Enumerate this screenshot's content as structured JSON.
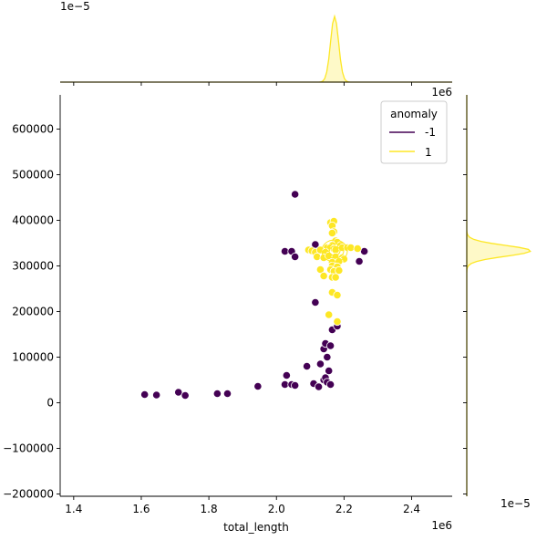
{
  "chart_data": {
    "type": "scatter",
    "title": "",
    "xlabel": "total_length",
    "ylabel": "",
    "x_offset_label": "1e6",
    "y_offset_label": "1e6",
    "top_marginal_offset_label": "1e−5",
    "right_marginal_offset_label": "1e−5",
    "xlim": [
      1.36,
      2.52
    ],
    "ylim": [
      -205000,
      675000
    ],
    "x_ticks": [
      1.4,
      1.6,
      1.8,
      2.0,
      2.2,
      2.4
    ],
    "y_ticks": [
      -200000,
      -100000,
      0,
      100000,
      200000,
      300000,
      400000,
      500000,
      600000
    ],
    "x_tick_labels": [
      "1.4",
      "1.6",
      "1.8",
      "2.0",
      "2.2",
      "2.4"
    ],
    "y_tick_labels": [
      "−200000",
      "−100000",
      "0",
      "100000",
      "200000",
      "300000",
      "400000",
      "500000",
      "600000"
    ],
    "grid": false,
    "legend": {
      "title": "anomaly",
      "placement": "top-right",
      "entries": [
        {
          "label": "-1",
          "color": "#440154"
        },
        {
          "label": "1",
          "color": "#fde725"
        }
      ]
    },
    "series": [
      {
        "name": "-1",
        "color": "#440154",
        "points": [
          [
            1.61,
            18000
          ],
          [
            1.645,
            17000
          ],
          [
            1.71,
            23000
          ],
          [
            1.73,
            16000
          ],
          [
            1.825,
            20000
          ],
          [
            1.855,
            20000
          ],
          [
            1.945,
            36000
          ],
          [
            2.025,
            40000
          ],
          [
            2.03,
            60000
          ],
          [
            2.045,
            40000
          ],
          [
            2.055,
            38000
          ],
          [
            2.09,
            80000
          ],
          [
            2.11,
            42000
          ],
          [
            2.125,
            35000
          ],
          [
            2.13,
            85000
          ],
          [
            2.14,
            50000
          ],
          [
            2.145,
            55000
          ],
          [
            2.15,
            100000
          ],
          [
            2.15,
            45000
          ],
          [
            2.155,
            70000
          ],
          [
            2.16,
            40000
          ],
          [
            2.14,
            118000
          ],
          [
            2.145,
            130000
          ],
          [
            2.16,
            125000
          ],
          [
            2.165,
            160000
          ],
          [
            2.18,
            168000
          ],
          [
            2.115,
            220000
          ],
          [
            2.025,
            332000
          ],
          [
            2.045,
            332000
          ],
          [
            2.055,
            320000
          ],
          [
            2.115,
            347000
          ],
          [
            2.26,
            332000
          ],
          [
            2.245,
            310000
          ],
          [
            2.055,
            457000
          ]
        ]
      },
      {
        "name": "1",
        "color": "#fde725",
        "points": [
          [
            2.16,
            395000
          ],
          [
            2.17,
            398000
          ],
          [
            2.165,
            388000
          ],
          [
            2.17,
            375000
          ],
          [
            2.165,
            372000
          ],
          [
            2.175,
            355000
          ],
          [
            2.18,
            352000
          ],
          [
            2.165,
            345000
          ],
          [
            2.19,
            345000
          ],
          [
            2.15,
            340000
          ],
          [
            2.16,
            340000
          ],
          [
            2.17,
            337000
          ],
          [
            2.175,
            335000
          ],
          [
            2.195,
            340000
          ],
          [
            2.21,
            340000
          ],
          [
            2.22,
            340000
          ],
          [
            2.24,
            338000
          ],
          [
            2.095,
            335000
          ],
          [
            2.105,
            333000
          ],
          [
            2.115,
            330000
          ],
          [
            2.13,
            335000
          ],
          [
            2.145,
            330000
          ],
          [
            2.12,
            320000
          ],
          [
            2.14,
            318000
          ],
          [
            2.155,
            322000
          ],
          [
            2.175,
            320000
          ],
          [
            2.195,
            318000
          ],
          [
            2.2,
            315000
          ],
          [
            2.165,
            308000
          ],
          [
            2.185,
            310000
          ],
          [
            2.165,
            300000
          ],
          [
            2.18,
            298000
          ],
          [
            2.16,
            292000
          ],
          [
            2.13,
            292000
          ],
          [
            2.17,
            288000
          ],
          [
            2.185,
            290000
          ],
          [
            2.14,
            278000
          ],
          [
            2.165,
            275000
          ],
          [
            2.175,
            275000
          ],
          [
            2.165,
            242000
          ],
          [
            2.18,
            236000
          ],
          [
            2.155,
            193000
          ],
          [
            2.18,
            178000
          ]
        ]
      }
    ],
    "marginal_x": {
      "series": "1",
      "peak_x": 2.172,
      "peak_density": 1.0,
      "spread": 0.012
    },
    "marginal_y": {
      "series": "1",
      "peak_y": 333000,
      "peak_density": 1.0,
      "spread": 12000
    }
  }
}
